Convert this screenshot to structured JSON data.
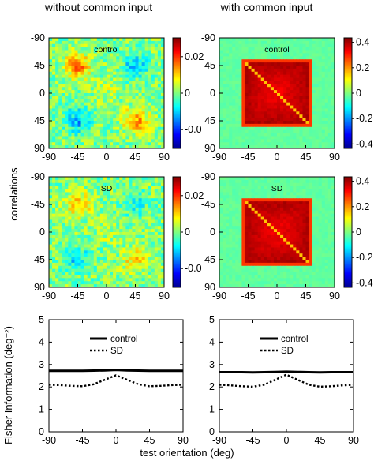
{
  "figure": {
    "column_titles": [
      "without common input",
      "with common input"
    ],
    "row_label_correlations": "correlations"
  },
  "chart_data": [
    {
      "type": "heatmap",
      "panel_label": "control",
      "x_ticks": [
        "-90",
        "-45",
        "0",
        "45",
        "90"
      ],
      "y_ticks": [
        "-90",
        "-45",
        "0",
        "45",
        "90"
      ],
      "xlim": [
        -90,
        90
      ],
      "ylim": [
        -90,
        90
      ],
      "colorbar_ticks": [
        "0.02",
        "0",
        "-0.0"
      ],
      "colorbar_range": [
        -0.03,
        0.03
      ],
      "pattern": {
        "kind": "blobs",
        "blobs": [
          [
            -45,
            -45,
            0.8
          ],
          [
            45,
            45,
            0.7
          ],
          [
            -45,
            45,
            -0.6
          ],
          [
            45,
            -45,
            -0.5
          ],
          [
            0,
            0,
            0.2
          ]
        ]
      }
    },
    {
      "type": "heatmap",
      "panel_label": "control",
      "x_ticks": [
        "-90",
        "-45",
        "0",
        "45",
        "90"
      ],
      "y_ticks": [
        "-90",
        "-45",
        "0",
        "45",
        "90"
      ],
      "xlim": [
        -90,
        90
      ],
      "ylim": [
        -90,
        90
      ],
      "colorbar_ticks": [
        "0.4",
        "0.2",
        "0",
        "-0.2",
        "-0.4"
      ],
      "colorbar_range": [
        -0.4,
        0.45
      ],
      "pattern": {
        "kind": "square",
        "half_width": 55,
        "center_value": 0.42,
        "edge_value": 0.3,
        "diagonal_value": 0.18
      }
    },
    {
      "type": "heatmap",
      "panel_label": "SD",
      "x_ticks": [
        "-90",
        "-45",
        "0",
        "45",
        "90"
      ],
      "y_ticks": [
        "-90",
        "-45",
        "0",
        "45",
        "90"
      ],
      "xlim": [
        -90,
        90
      ],
      "ylim": [
        -90,
        90
      ],
      "colorbar_ticks": [
        "0.02",
        "0",
        "-0.0"
      ],
      "colorbar_range": [
        -0.03,
        0.03
      ],
      "pattern": {
        "kind": "blobs",
        "blobs": [
          [
            -45,
            -45,
            0.6
          ],
          [
            45,
            45,
            0.45
          ],
          [
            -45,
            45,
            -0.45
          ],
          [
            45,
            -45,
            -0.35
          ],
          [
            0,
            0,
            0.15
          ]
        ]
      }
    },
    {
      "type": "heatmap",
      "panel_label": "SD",
      "x_ticks": [
        "-90",
        "-45",
        "0",
        "45",
        "90"
      ],
      "y_ticks": [
        "-90",
        "-45",
        "0",
        "45",
        "90"
      ],
      "xlim": [
        -90,
        90
      ],
      "ylim": [
        -90,
        90
      ],
      "colorbar_ticks": [
        "0.4",
        "0.2",
        "0",
        "-0.2",
        "-0.4"
      ],
      "colorbar_range": [
        -0.4,
        0.45
      ],
      "pattern": {
        "kind": "square",
        "half_width": 55,
        "center_value": 0.42,
        "edge_value": 0.3,
        "diagonal_value": 0.18
      }
    },
    {
      "type": "line",
      "ylabel": "Fisher Information (deg⁻²)",
      "xlabel": "",
      "xlim": [
        -90,
        90
      ],
      "ylim": [
        0,
        5
      ],
      "x_ticks": [
        "-90",
        "-45",
        "0",
        "45",
        "90"
      ],
      "y_ticks": [
        "0",
        "1",
        "2",
        "3",
        "4",
        "5"
      ],
      "x": [
        -90,
        -75,
        -60,
        -45,
        -30,
        -15,
        0,
        15,
        30,
        45,
        60,
        75,
        90
      ],
      "series": [
        {
          "name": "control",
          "values": [
            2.72,
            2.72,
            2.72,
            2.72,
            2.73,
            2.74,
            2.76,
            2.74,
            2.73,
            2.72,
            2.72,
            2.72,
            2.72
          ]
        },
        {
          "name": "SD",
          "values": [
            2.1,
            2.08,
            2.05,
            2.03,
            2.12,
            2.32,
            2.52,
            2.32,
            2.12,
            2.03,
            2.05,
            2.08,
            2.1
          ]
        }
      ]
    },
    {
      "type": "line",
      "ylabel": "",
      "xlabel": "",
      "xlim": [
        -90,
        90
      ],
      "ylim": [
        0,
        5
      ],
      "x_ticks": [
        "-90",
        "-45",
        "0",
        "45",
        "90"
      ],
      "y_ticks": [
        "0",
        "1",
        "2",
        "3",
        "4",
        "5"
      ],
      "x": [
        -90,
        -75,
        -60,
        -45,
        -30,
        -15,
        0,
        15,
        30,
        45,
        60,
        75,
        90
      ],
      "series": [
        {
          "name": "control",
          "values": [
            2.66,
            2.66,
            2.66,
            2.65,
            2.66,
            2.67,
            2.68,
            2.67,
            2.66,
            2.65,
            2.66,
            2.66,
            2.66
          ]
        },
        {
          "name": "SD",
          "values": [
            2.1,
            2.07,
            2.03,
            2.01,
            2.1,
            2.32,
            2.55,
            2.32,
            2.1,
            2.01,
            2.03,
            2.07,
            2.1
          ]
        }
      ]
    }
  ],
  "shared_xlabel": "test orientation (deg)"
}
